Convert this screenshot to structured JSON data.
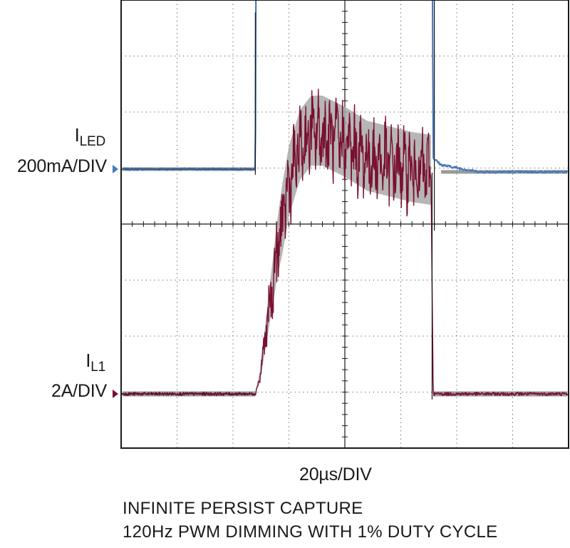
{
  "chart_data": {
    "type": "line",
    "title": "",
    "grid": true,
    "x_scale_label": "20µs/DIV",
    "x_unit": "µs",
    "x_per_div": 20,
    "xlim": [
      0,
      200
    ],
    "channels": [
      {
        "name_main": "I",
        "name_sub": "LED",
        "scale_label": "200mA/DIV",
        "units_per_div": 200,
        "unit": "mA",
        "color": "#4a7ab8",
        "marker_color": "#4a7ab8",
        "zero_level_div": 0,
        "points": [
          {
            "x": 0,
            "y": 0
          },
          {
            "x": 60,
            "y": 0
          },
          {
            "x": 60,
            "y": 20
          },
          {
            "x": 60.8,
            "y": 1920
          },
          {
            "x": 62,
            "y": 1940
          },
          {
            "x": 70,
            "y": 1840
          },
          {
            "x": 80,
            "y": 1800
          },
          {
            "x": 90,
            "y": 1830
          },
          {
            "x": 100,
            "y": 1900
          },
          {
            "x": 110,
            "y": 1960
          },
          {
            "x": 120,
            "y": 2000
          },
          {
            "x": 130,
            "y": 2000
          },
          {
            "x": 138.5,
            "y": 2000
          },
          {
            "x": 139.5,
            "y": 40
          },
          {
            "x": 143,
            "y": 15
          },
          {
            "x": 160,
            "y": -10
          },
          {
            "x": 200,
            "y": -10
          }
        ]
      },
      {
        "name_main": "I",
        "name_sub": "L1",
        "scale_label": "2A/DIV",
        "units_per_div": 2,
        "unit": "A",
        "color": "#7a1030",
        "marker_color": "#7a1030",
        "zero_level_div": 0,
        "points": [
          {
            "x": 0,
            "y": 0
          },
          {
            "x": 60,
            "y": 0
          },
          {
            "x": 62,
            "y": 0.6
          },
          {
            "x": 70,
            "y": 5.2
          },
          {
            "x": 75,
            "y": 7.5
          },
          {
            "x": 80,
            "y": 8.8
          },
          {
            "x": 85,
            "y": 9.3
          },
          {
            "x": 90,
            "y": 9.3
          },
          {
            "x": 100,
            "y": 8.9
          },
          {
            "x": 110,
            "y": 8.4
          },
          {
            "x": 120,
            "y": 8.2
          },
          {
            "x": 130,
            "y": 8.0
          },
          {
            "x": 138.5,
            "y": 7.9
          },
          {
            "x": 139.5,
            "y": 0.0
          },
          {
            "x": 142,
            "y": 0
          },
          {
            "x": 200,
            "y": 0
          }
        ]
      }
    ]
  },
  "notes": [
    "INFINITE PERSIST CAPTURE",
    "120Hz PWM DIMMING WITH 1% DUTY CYCLE"
  ]
}
